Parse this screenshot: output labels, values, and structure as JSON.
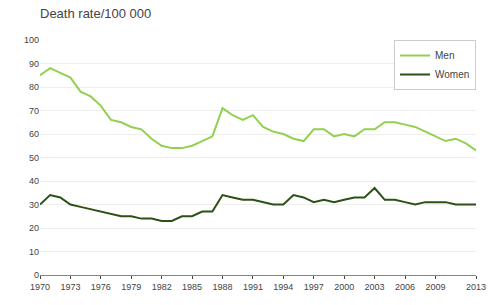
{
  "chart_data": {
    "type": "line",
    "title": "Death rate/100 000",
    "x": [
      1970,
      1971,
      1972,
      1973,
      1974,
      1975,
      1976,
      1977,
      1978,
      1979,
      1980,
      1981,
      1982,
      1983,
      1984,
      1985,
      1986,
      1987,
      1988,
      1989,
      1990,
      1991,
      1992,
      1993,
      1994,
      1995,
      1996,
      1997,
      1998,
      1999,
      2000,
      2001,
      2002,
      2003,
      2004,
      2005,
      2006,
      2007,
      2008,
      2009,
      2010,
      2011,
      2012,
      2013
    ],
    "series": [
      {
        "name": "Men",
        "color": "#92d050",
        "values": [
          85,
          88,
          86,
          84,
          78,
          76,
          72,
          66,
          65,
          63,
          62,
          58,
          55,
          54,
          54,
          55,
          57,
          59,
          71,
          68,
          66,
          68,
          63,
          61,
          60,
          58,
          57,
          62,
          62,
          59,
          60,
          59,
          62,
          62,
          65,
          65,
          64,
          63,
          61,
          59,
          57,
          58,
          56,
          53
        ]
      },
      {
        "name": "Women",
        "color": "#2d5016",
        "values": [
          30,
          34,
          33,
          30,
          29,
          28,
          27,
          26,
          25,
          25,
          24,
          24,
          23,
          23,
          25,
          25,
          27,
          27,
          34,
          33,
          32,
          32,
          31,
          30,
          30,
          34,
          33,
          31,
          32,
          31,
          32,
          33,
          33,
          37,
          32,
          32,
          31,
          30,
          31,
          31,
          31,
          30,
          30,
          30
        ]
      }
    ],
    "xlim": [
      1970,
      2013
    ],
    "xticks": [
      1970,
      1973,
      1976,
      1979,
      1982,
      1985,
      1988,
      1991,
      1994,
      1997,
      2000,
      2003,
      2006,
      2009,
      2013
    ],
    "ylim": [
      0,
      100
    ],
    "yticks": [
      0,
      10,
      20,
      30,
      40,
      50,
      60,
      70,
      80,
      90,
      100
    ],
    "grid": true,
    "legend": "upper right"
  }
}
